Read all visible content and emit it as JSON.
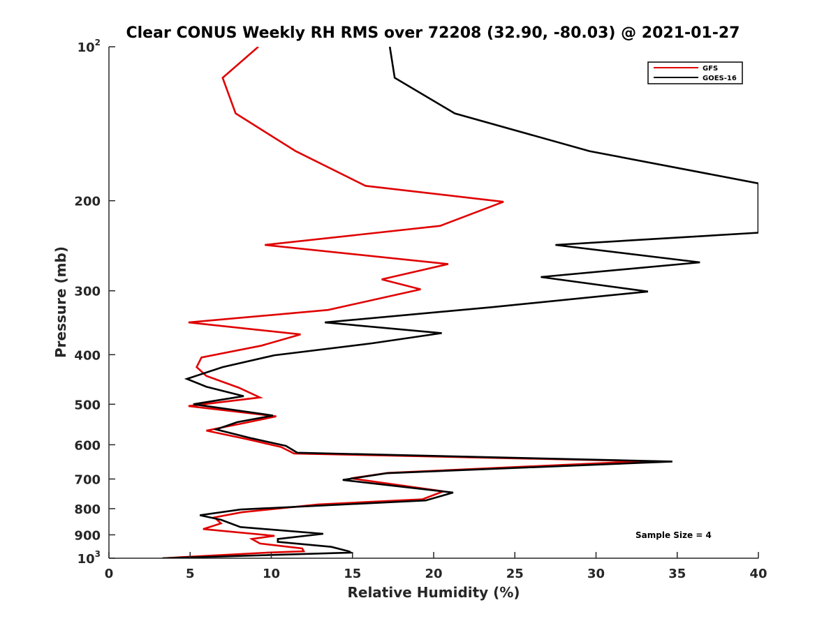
{
  "chart_data": {
    "type": "line",
    "title": "Clear CONUS Weekly RH RMS over 72208 (32.90, -80.03) @ 2021-01-27",
    "xlabel": "Relative Humidity (%)",
    "ylabel": "Pressure (mb)",
    "xlim": [
      0,
      40
    ],
    "ylim": [
      100,
      1000
    ],
    "y_scale": "log",
    "y_reversed": true,
    "grid": false,
    "legend_position": "top-right",
    "annotation": "Sample Size = 4",
    "x_ticks": [
      "0",
      "5",
      "10",
      "15",
      "20",
      "25",
      "30",
      "35",
      "40"
    ],
    "y_ticks": [
      {
        "value": 100,
        "base": "10",
        "exp": "2"
      },
      {
        "value": 200,
        "base": "200",
        "exp": ""
      },
      {
        "value": 300,
        "base": "300",
        "exp": ""
      },
      {
        "value": 400,
        "base": "400",
        "exp": ""
      },
      {
        "value": 500,
        "base": "500",
        "exp": ""
      },
      {
        "value": 600,
        "base": "600",
        "exp": ""
      },
      {
        "value": 700,
        "base": "700",
        "exp": ""
      },
      {
        "value": 800,
        "base": "800",
        "exp": ""
      },
      {
        "value": 900,
        "base": "900",
        "exp": ""
      },
      {
        "value": 1000,
        "base": "10",
        "exp": "3"
      }
    ],
    "series": [
      {
        "name": "GFS",
        "color": "#e00000",
        "points": [
          [
            9.2,
            100
          ],
          [
            7.0,
            115
          ],
          [
            7.8,
            135
          ],
          [
            11.5,
            160
          ],
          [
            15.8,
            187
          ],
          [
            24.3,
            201
          ],
          [
            20.4,
            224
          ],
          [
            9.6,
            244
          ],
          [
            20.9,
            266
          ],
          [
            16.8,
            285
          ],
          [
            19.2,
            298
          ],
          [
            13.5,
            327
          ],
          [
            4.9,
            346
          ],
          [
            11.8,
            365
          ],
          [
            9.4,
            384
          ],
          [
            5.7,
            405
          ],
          [
            5.4,
            423
          ],
          [
            6.0,
            440
          ],
          [
            8.0,
            464
          ],
          [
            9.3,
            485
          ],
          [
            4.9,
            504
          ],
          [
            10.3,
            528
          ],
          [
            8.1,
            546
          ],
          [
            6.0,
            563
          ],
          [
            8.5,
            585
          ],
          [
            10.6,
            606
          ],
          [
            11.4,
            624
          ],
          [
            33.0,
            646
          ],
          [
            17.2,
            681
          ],
          [
            14.9,
            698
          ],
          [
            20.6,
            740
          ],
          [
            19.3,
            767
          ],
          [
            12.9,
            785
          ],
          [
            8.2,
            813
          ],
          [
            6.5,
            832
          ],
          [
            6.9,
            855
          ],
          [
            5.8,
            877
          ],
          [
            10.2,
            904
          ],
          [
            8.8,
            917
          ],
          [
            9.3,
            936
          ],
          [
            11.9,
            957
          ],
          [
            12.0,
            969
          ],
          [
            9.8,
            975
          ],
          [
            3.3,
            1000
          ]
        ]
      },
      {
        "name": "GOES-16",
        "color": "#000000",
        "points": [
          [
            17.3,
            100
          ],
          [
            17.6,
            115
          ],
          [
            21.3,
            135
          ],
          [
            29.6,
            160
          ],
          [
            40.0,
            185
          ],
          [
            40.0,
            231
          ],
          [
            27.5,
            244
          ],
          [
            36.4,
            264
          ],
          [
            26.6,
            282
          ],
          [
            33.2,
            301
          ],
          [
            23.6,
            323
          ],
          [
            13.3,
            346
          ],
          [
            20.5,
            363
          ],
          [
            16.2,
            380
          ],
          [
            10.2,
            401
          ],
          [
            7.0,
            423
          ],
          [
            4.8,
            446
          ],
          [
            6.0,
            462
          ],
          [
            8.3,
            482
          ],
          [
            5.2,
            500
          ],
          [
            10.1,
            526
          ],
          [
            7.9,
            542
          ],
          [
            6.6,
            560
          ],
          [
            8.8,
            583
          ],
          [
            10.9,
            603
          ],
          [
            11.6,
            622
          ],
          [
            34.7,
            647
          ],
          [
            17.1,
            682
          ],
          [
            14.4,
            703
          ],
          [
            21.2,
            744
          ],
          [
            19.5,
            771
          ],
          [
            8.1,
            803
          ],
          [
            5.6,
            824
          ],
          [
            6.9,
            841
          ],
          [
            8.1,
            869
          ],
          [
            13.2,
            896
          ],
          [
            10.4,
            917
          ],
          [
            10.4,
            929
          ],
          [
            13.7,
            950
          ],
          [
            14.8,
            970
          ],
          [
            14.9,
            975
          ],
          [
            3.3,
            1000
          ]
        ]
      }
    ]
  }
}
